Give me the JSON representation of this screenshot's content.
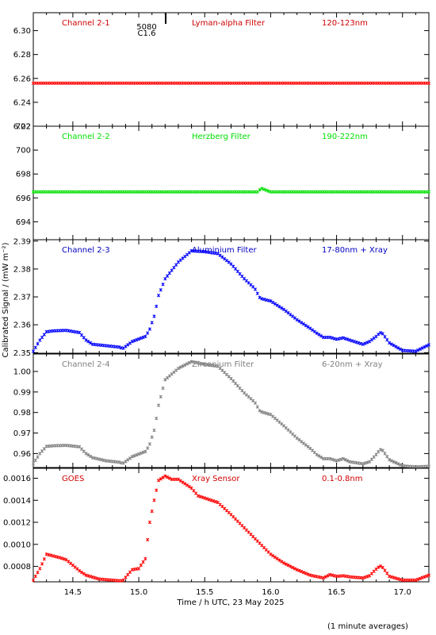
{
  "ylabel": "Calibrated Signal / (mW m⁻²)",
  "xlabel": "Time / h UTC, 23 May 2025",
  "footnote": "(1 minute averages)",
  "flare_marker": {
    "label_top": "5080",
    "label_bottom": "C1.6"
  },
  "colors": {
    "red": "#ff0000",
    "green": "#00e000",
    "blue": "#0000ff",
    "gray": "#808080"
  },
  "chart_data": [
    {
      "type": "scatter",
      "channel": "Channel 2-1",
      "filter": "Lyman-alpha Filter",
      "band": "120-123nm",
      "color": "#ff0000",
      "label_color": "#d00000",
      "ylim": [
        6.22,
        6.315
      ],
      "yticks": [
        "6.22",
        "6.24",
        "6.26",
        "6.28",
        "6.30"
      ],
      "x": [
        14.2,
        17.2
      ],
      "y": [
        6.256,
        6.256
      ]
    },
    {
      "type": "scatter",
      "channel": "Channel 2-2",
      "filter": "Herzberg Filter",
      "band": "190-222nm",
      "color": "#00e000",
      "label_color": "#00e000",
      "ylim": [
        692.5,
        702.0
      ],
      "yticks": [
        "694",
        "696",
        "698",
        "700",
        "702"
      ],
      "x": [
        14.2,
        15.5,
        15.9,
        15.93,
        16.0,
        17.2
      ],
      "y": [
        696.5,
        696.5,
        696.5,
        696.8,
        696.5,
        696.5
      ]
    },
    {
      "type": "scatter",
      "channel": "Channel 2-3",
      "filter": "Aluminium Filter",
      "band": "17-80nm + Xray",
      "color": "#0000ff",
      "label_color": "#0000c0",
      "ylim": [
        2.3498,
        2.3905
      ],
      "yticks": [
        "2.35",
        "2.36",
        "2.37",
        "2.38",
        "2.39"
      ],
      "x": [
        14.2,
        14.25,
        14.3,
        14.35,
        14.45,
        14.55,
        14.6,
        14.65,
        14.75,
        14.85,
        14.88,
        14.95,
        15.05,
        15.08,
        15.12,
        15.15,
        15.2,
        15.3,
        15.4,
        15.5,
        15.6,
        15.7,
        15.8,
        15.88,
        15.92,
        16.0,
        16.1,
        16.2,
        16.3,
        16.35,
        16.4,
        16.45,
        16.5,
        16.55,
        16.6,
        16.7,
        16.75,
        16.8,
        16.83,
        16.85,
        16.9,
        17.0,
        17.1,
        17.2
      ],
      "y": [
        2.3505,
        2.3545,
        2.3575,
        2.3578,
        2.358,
        2.3572,
        2.3545,
        2.353,
        2.3525,
        2.352,
        2.3515,
        2.354,
        2.3558,
        2.358,
        2.3635,
        2.3705,
        2.3765,
        2.3825,
        2.3865,
        2.3862,
        2.3855,
        2.3818,
        2.3765,
        2.373,
        2.3695,
        2.3685,
        2.3655,
        2.3618,
        2.3587,
        2.357,
        2.3555,
        2.3555,
        2.3548,
        2.3553,
        2.3545,
        2.353,
        2.354,
        2.3558,
        2.3572,
        2.3568,
        2.3535,
        2.3508,
        2.3505,
        2.3528
      ]
    },
    {
      "type": "scatter",
      "channel": "Channel 2-4",
      "filter": "Zirconium Filter",
      "band": "6-20nm + Xray",
      "color": "#808080",
      "label_color": "#808080",
      "ylim": [
        0.9532,
        1.0085
      ],
      "yticks": [
        "0.96",
        "0.97",
        "0.98",
        "0.99",
        "1.00"
      ],
      "x": [
        14.2,
        14.25,
        14.3,
        14.35,
        14.45,
        14.55,
        14.6,
        14.65,
        14.75,
        14.85,
        14.88,
        14.95,
        15.05,
        15.08,
        15.12,
        15.15,
        15.2,
        15.3,
        15.4,
        15.5,
        15.6,
        15.7,
        15.8,
        15.88,
        15.92,
        16.0,
        16.1,
        16.2,
        16.3,
        16.35,
        16.4,
        16.45,
        16.5,
        16.55,
        16.6,
        16.7,
        16.75,
        16.8,
        16.83,
        16.85,
        16.9,
        17.0,
        17.1,
        17.2
      ],
      "y": [
        0.955,
        0.96,
        0.9635,
        0.9638,
        0.964,
        0.9633,
        0.96,
        0.958,
        0.9565,
        0.9558,
        0.9552,
        0.9585,
        0.961,
        0.964,
        0.972,
        0.9835,
        0.996,
        1.0015,
        1.0048,
        1.0035,
        1.0025,
        0.9965,
        0.9895,
        0.985,
        0.9805,
        0.979,
        0.9735,
        0.9675,
        0.9625,
        0.9595,
        0.9575,
        0.9575,
        0.9565,
        0.9575,
        0.956,
        0.955,
        0.956,
        0.9595,
        0.962,
        0.9615,
        0.957,
        0.954,
        0.9535,
        0.9538
      ]
    },
    {
      "type": "scatter",
      "channel": "GOES",
      "filter": "Xray Sensor",
      "band": "0.1-0.8nm",
      "color": "#ff0000",
      "label_color": "#d00000",
      "ylim": [
        0.00066,
        0.00169
      ],
      "yticks": [
        "0.0008",
        "0.0010",
        "0.0012",
        "0.0014",
        "0.0016"
      ],
      "x": [
        14.2,
        14.25,
        14.3,
        14.35,
        14.4,
        14.45,
        14.5,
        14.55,
        14.6,
        14.7,
        14.8,
        14.85,
        14.88,
        14.92,
        14.95,
        15.0,
        15.05,
        15.08,
        15.12,
        15.15,
        15.2,
        15.25,
        15.3,
        15.4,
        15.45,
        15.5,
        15.6,
        15.7,
        15.8,
        15.9,
        16.0,
        16.1,
        16.2,
        16.3,
        16.4,
        16.45,
        16.5,
        16.55,
        16.6,
        16.7,
        16.75,
        16.8,
        16.83,
        16.85,
        16.9,
        17.0,
        17.1,
        17.2
      ],
      "y": [
        0.000675,
        0.00078,
        0.00091,
        0.000895,
        0.00088,
        0.00086,
        0.00081,
        0.00076,
        0.00072,
        0.000685,
        0.000675,
        0.00067,
        0.00067,
        0.00073,
        0.00077,
        0.00078,
        0.00087,
        0.00118,
        0.00142,
        0.00158,
        0.00162,
        0.00159,
        0.00159,
        0.00151,
        0.00144,
        0.00142,
        0.00138,
        0.00127,
        0.00115,
        0.00103,
        0.00091,
        0.00083,
        0.00077,
        0.00072,
        0.000695,
        0.000725,
        0.00071,
        0.000715,
        0.000705,
        0.000695,
        0.000715,
        0.000775,
        0.000805,
        0.00079,
        0.00071,
        0.000675,
        0.000675,
        0.00072
      ]
    }
  ],
  "xaxis": {
    "xlim": [
      14.2,
      17.2
    ],
    "xticks": [
      "14.5",
      "15.0",
      "15.5",
      "16.0",
      "16.5",
      "17.0"
    ]
  }
}
